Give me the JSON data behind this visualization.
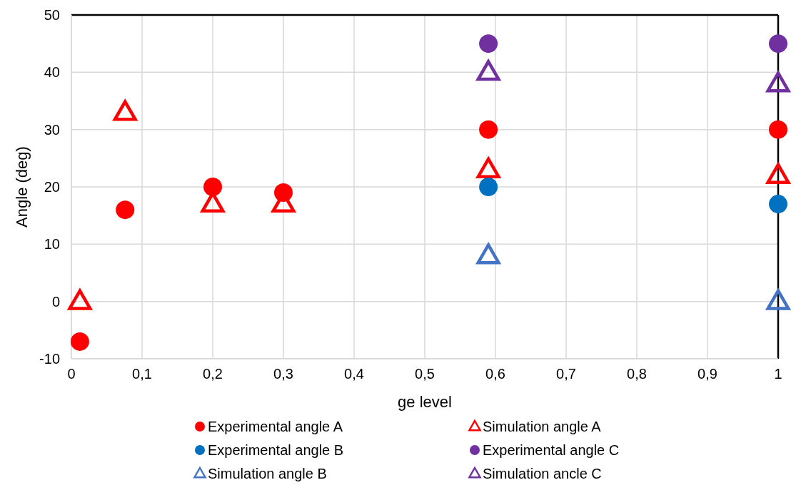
{
  "chart_data": {
    "type": "scatter",
    "xlabel": "ge level",
    "ylabel": "Angle (deg)",
    "xlim": [
      0,
      1
    ],
    "ylim": [
      -10,
      50
    ],
    "xticks": [
      0,
      {
        "value": 0.1,
        "label": "0,1"
      },
      {
        "value": 0.2,
        "label": "0,2"
      },
      {
        "value": 0.3,
        "label": "0,3"
      },
      {
        "value": 0.4,
        "label": "0,4"
      },
      {
        "value": 0.5,
        "label": "0,5"
      },
      {
        "value": 0.6,
        "label": "0,6"
      },
      {
        "value": 0.7,
        "label": "0,7"
      },
      {
        "value": 0.8,
        "label": "0,8"
      },
      {
        "value": 0.9,
        "label": "0,9"
      },
      1
    ],
    "yticks": [
      -10,
      0,
      10,
      20,
      30,
      40,
      50
    ],
    "grid": true,
    "legend": "bottom",
    "series": [
      {
        "name": "Experimental angle A",
        "color": "#ff0000",
        "marker": "circle",
        "x": [
          0.012,
          0.076,
          0.2,
          0.3,
          0.59,
          1
        ],
        "values": [
          -7,
          16,
          20,
          19,
          30,
          30
        ]
      },
      {
        "name": "Simulation angle A",
        "color": "#ff0000",
        "marker": "triangle",
        "x": [
          0.012,
          0.076,
          0.2,
          0.3,
          0.59,
          1
        ],
        "values": [
          0,
          33,
          17,
          17,
          23,
          22
        ]
      },
      {
        "name": "Experimental angle B",
        "color": "#0070c0",
        "marker": "circle",
        "x": [
          0.59,
          1
        ],
        "values": [
          20,
          17
        ]
      },
      {
        "name": "Experimental angle C",
        "color": "#7030a0",
        "marker": "circle",
        "x": [
          0.59,
          1
        ],
        "values": [
          45,
          45
        ]
      },
      {
        "name": "Simulation angle B",
        "color": "#4472c4",
        "marker": "triangle",
        "x": [
          0.59,
          1
        ],
        "values": [
          8,
          0
        ]
      },
      {
        "name": "Simulation ancle C",
        "color": "#7030a0",
        "marker": "triangle",
        "x": [
          0.59,
          1
        ],
        "values": [
          40,
          38
        ]
      }
    ]
  }
}
